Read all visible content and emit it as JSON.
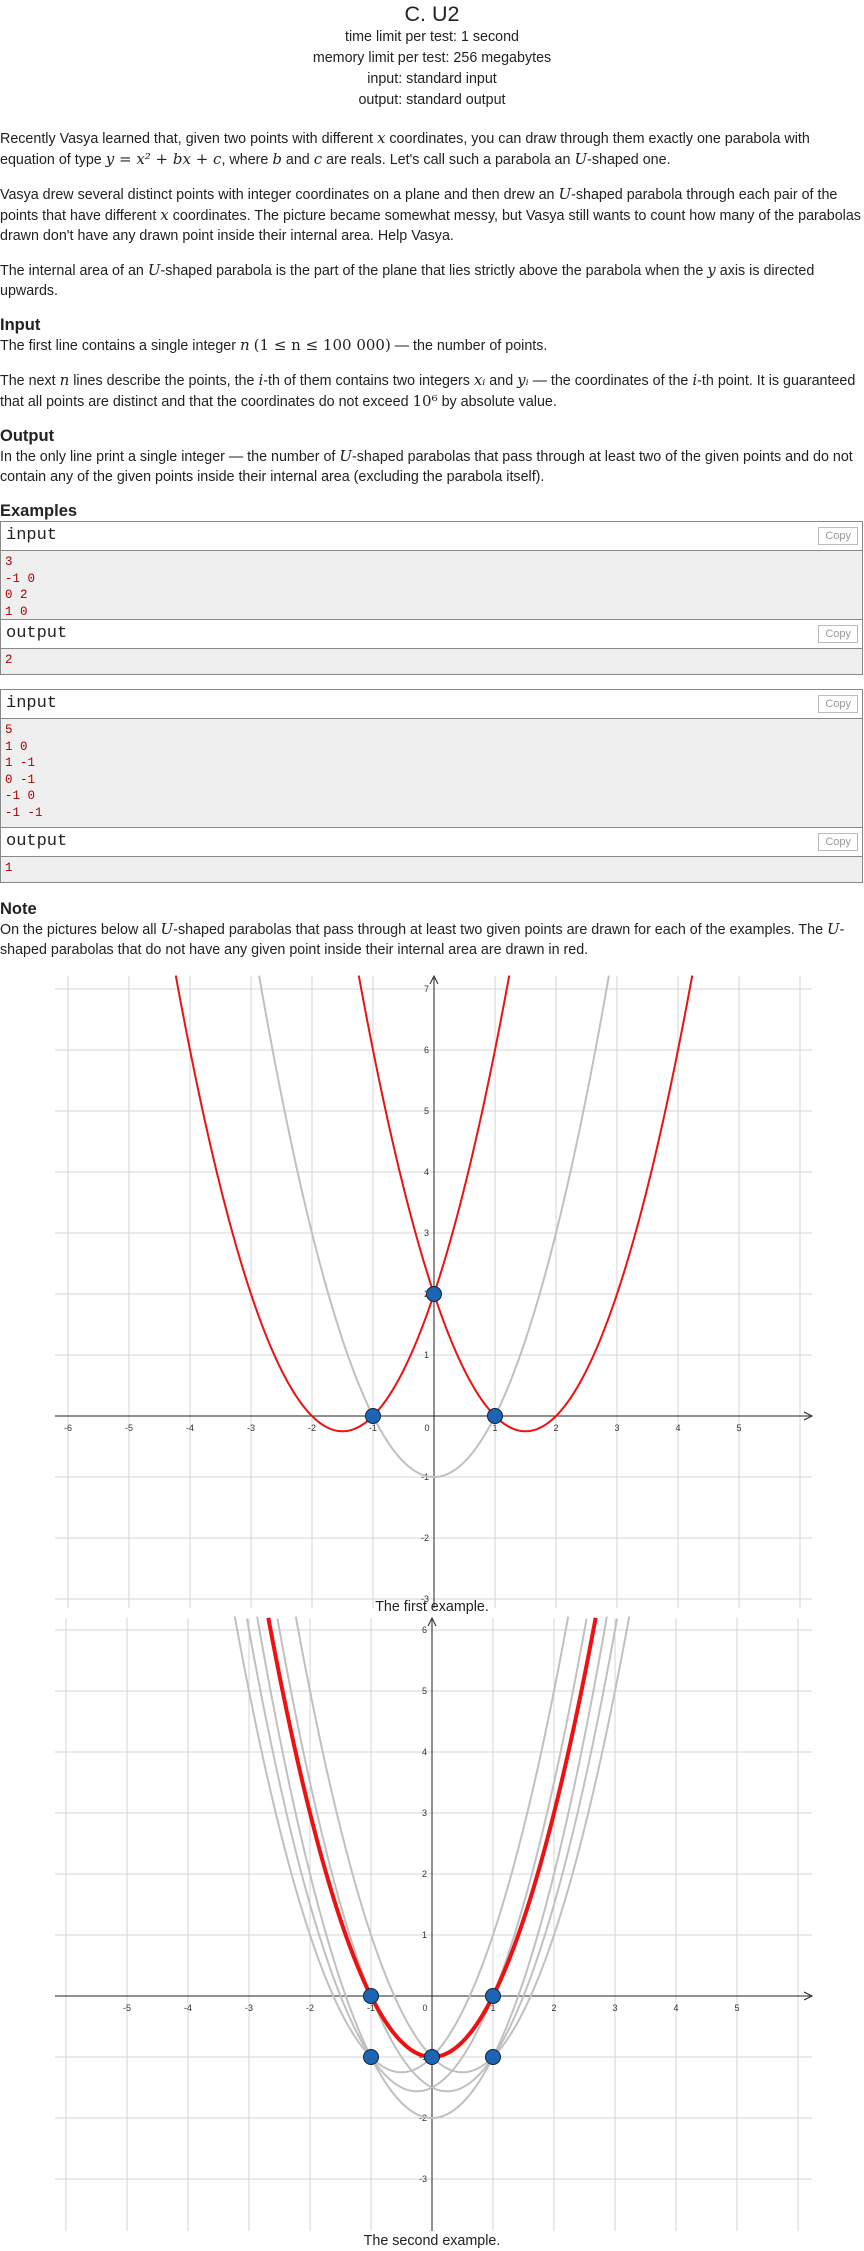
{
  "header": {
    "title": "C. U2",
    "time_limit": "time limit per test: 1 second",
    "memory_limit": "memory limit per test: 256 megabytes",
    "input": "input: standard input",
    "output": "output: standard output"
  },
  "statement": {
    "p1a": "Recently Vasya learned that, given two points with different ",
    "p1b": " coordinates, you can draw through them exactly one parabola with equation of type ",
    "p1c": ", where ",
    "p1d": " and ",
    "p1e": " are reals. Let's call such a parabola an ",
    "p1f": "-shaped one.",
    "p2a": "Vasya drew several distinct points with integer coordinates on a plane and then drew an ",
    "p2b": "-shaped parabola through each pair of the points that have different ",
    "p2c": " coordinates. The picture became somewhat messy, but Vasya still wants to count how many of the parabolas drawn don't have any drawn point inside their internal area. Help Vasya.",
    "p3a": "The internal area of an ",
    "p3b": "-shaped parabola is the part of the plane that lies strictly above the parabola when the ",
    "p3c": " axis is directed upwards."
  },
  "input_spec": {
    "heading": "Input",
    "p1a": "The first line contains a single integer ",
    "p1b": " — the number of points.",
    "p2a": "The next ",
    "p2b": " lines describe the points, the ",
    "p2c": "-th of them contains two integers ",
    "p2d": " and ",
    "p2e": " — the coordinates of the ",
    "p2f": "-th point. It is guaranteed that all points are distinct and that the coordinates do not exceed ",
    "p2g": " by absolute value."
  },
  "output_spec": {
    "heading": "Output",
    "p1a": "In the only line print a single integer — the number of ",
    "p1b": "-shaped parabolas that pass through at least two of the given points and do not contain any of the given points inside their internal area (excluding the parabola itself)."
  },
  "examples": {
    "heading": "Examples",
    "input_label": "input",
    "output_label": "output",
    "copy_label": "Copy",
    "ex1_input": [
      "3",
      "-1 0",
      "0 2",
      "1 0"
    ],
    "ex1_output": "2",
    "ex2_input": [
      "5",
      "1 0",
      "1 -1",
      "0 -1",
      "-1 0",
      "-1 -1"
    ],
    "ex2_output": "1"
  },
  "note": {
    "heading": "Note",
    "p1a": "On the pictures below all ",
    "p1b": "-shaped parabolas that pass through at least two given points are drawn for each of the examples. The ",
    "p1c": "-shaped parabolas that do not have any given point inside their internal area are drawn in red.",
    "caption1": "The first example.",
    "caption2": "The second example."
  },
  "math": {
    "x": "x",
    "y": "y",
    "b": "b",
    "c": "c",
    "U": "U",
    "n": "n",
    "i": "i",
    "eq": "y = x² + bx + c",
    "n_range": "(1 ≤ n ≤ 100 000)",
    "xi": "xᵢ",
    "yi": "yᵢ",
    "ten6": "10⁶"
  },
  "colors": {
    "red": "#ee1111",
    "gray": "#c0c0c0",
    "point": "#1e64b4",
    "grid": "#d4d4d4"
  },
  "chart_data": [
    {
      "type": "line",
      "xlim": [
        -6,
        5
      ],
      "ylim": [
        -3,
        7
      ],
      "x_ticks": [
        "-6",
        "-5",
        "-4",
        "-3",
        "-2",
        "-1",
        "0",
        "1",
        "2",
        "3",
        "4",
        "5"
      ],
      "y_ticks": [
        "-3",
        "-2",
        "-1",
        "1",
        "2",
        "3",
        "4",
        "5",
        "6",
        "7"
      ],
      "grid": true,
      "points": [
        [
          -1,
          0
        ],
        [
          0,
          2
        ],
        [
          1,
          0
        ]
      ],
      "parabolas": [
        {
          "b": 3,
          "c": 2,
          "color": "red"
        },
        {
          "b": -3,
          "c": 2,
          "color": "red"
        },
        {
          "b": 0,
          "c": -1,
          "color": "gray"
        }
      ]
    },
    {
      "type": "line",
      "xlim": [
        -6,
        6
      ],
      "ylim": [
        -3,
        6
      ],
      "x_ticks": [
        "-5",
        "-4",
        "-3",
        "-2",
        "-1",
        "0",
        "1",
        "2",
        "3",
        "4",
        "5"
      ],
      "y_ticks": [
        "-3",
        "-2",
        "-1",
        "1",
        "2",
        "3",
        "4",
        "5",
        "6"
      ],
      "grid": true,
      "points": [
        [
          1,
          0
        ],
        [
          1,
          -1
        ],
        [
          0,
          -1
        ],
        [
          -1,
          0
        ],
        [
          -1,
          -1
        ]
      ],
      "parabolas": [
        {
          "b": 0,
          "c": -1,
          "color": "red"
        },
        {
          "b": 1,
          "c": -1,
          "color": "gray"
        },
        {
          "b": -1,
          "c": -1,
          "color": "gray"
        },
        {
          "b": 0.5,
          "c": -1.5,
          "color": "gray"
        },
        {
          "b": -0.5,
          "c": -1.5,
          "color": "gray"
        },
        {
          "b": 0,
          "c": -2,
          "color": "gray"
        }
      ]
    }
  ]
}
